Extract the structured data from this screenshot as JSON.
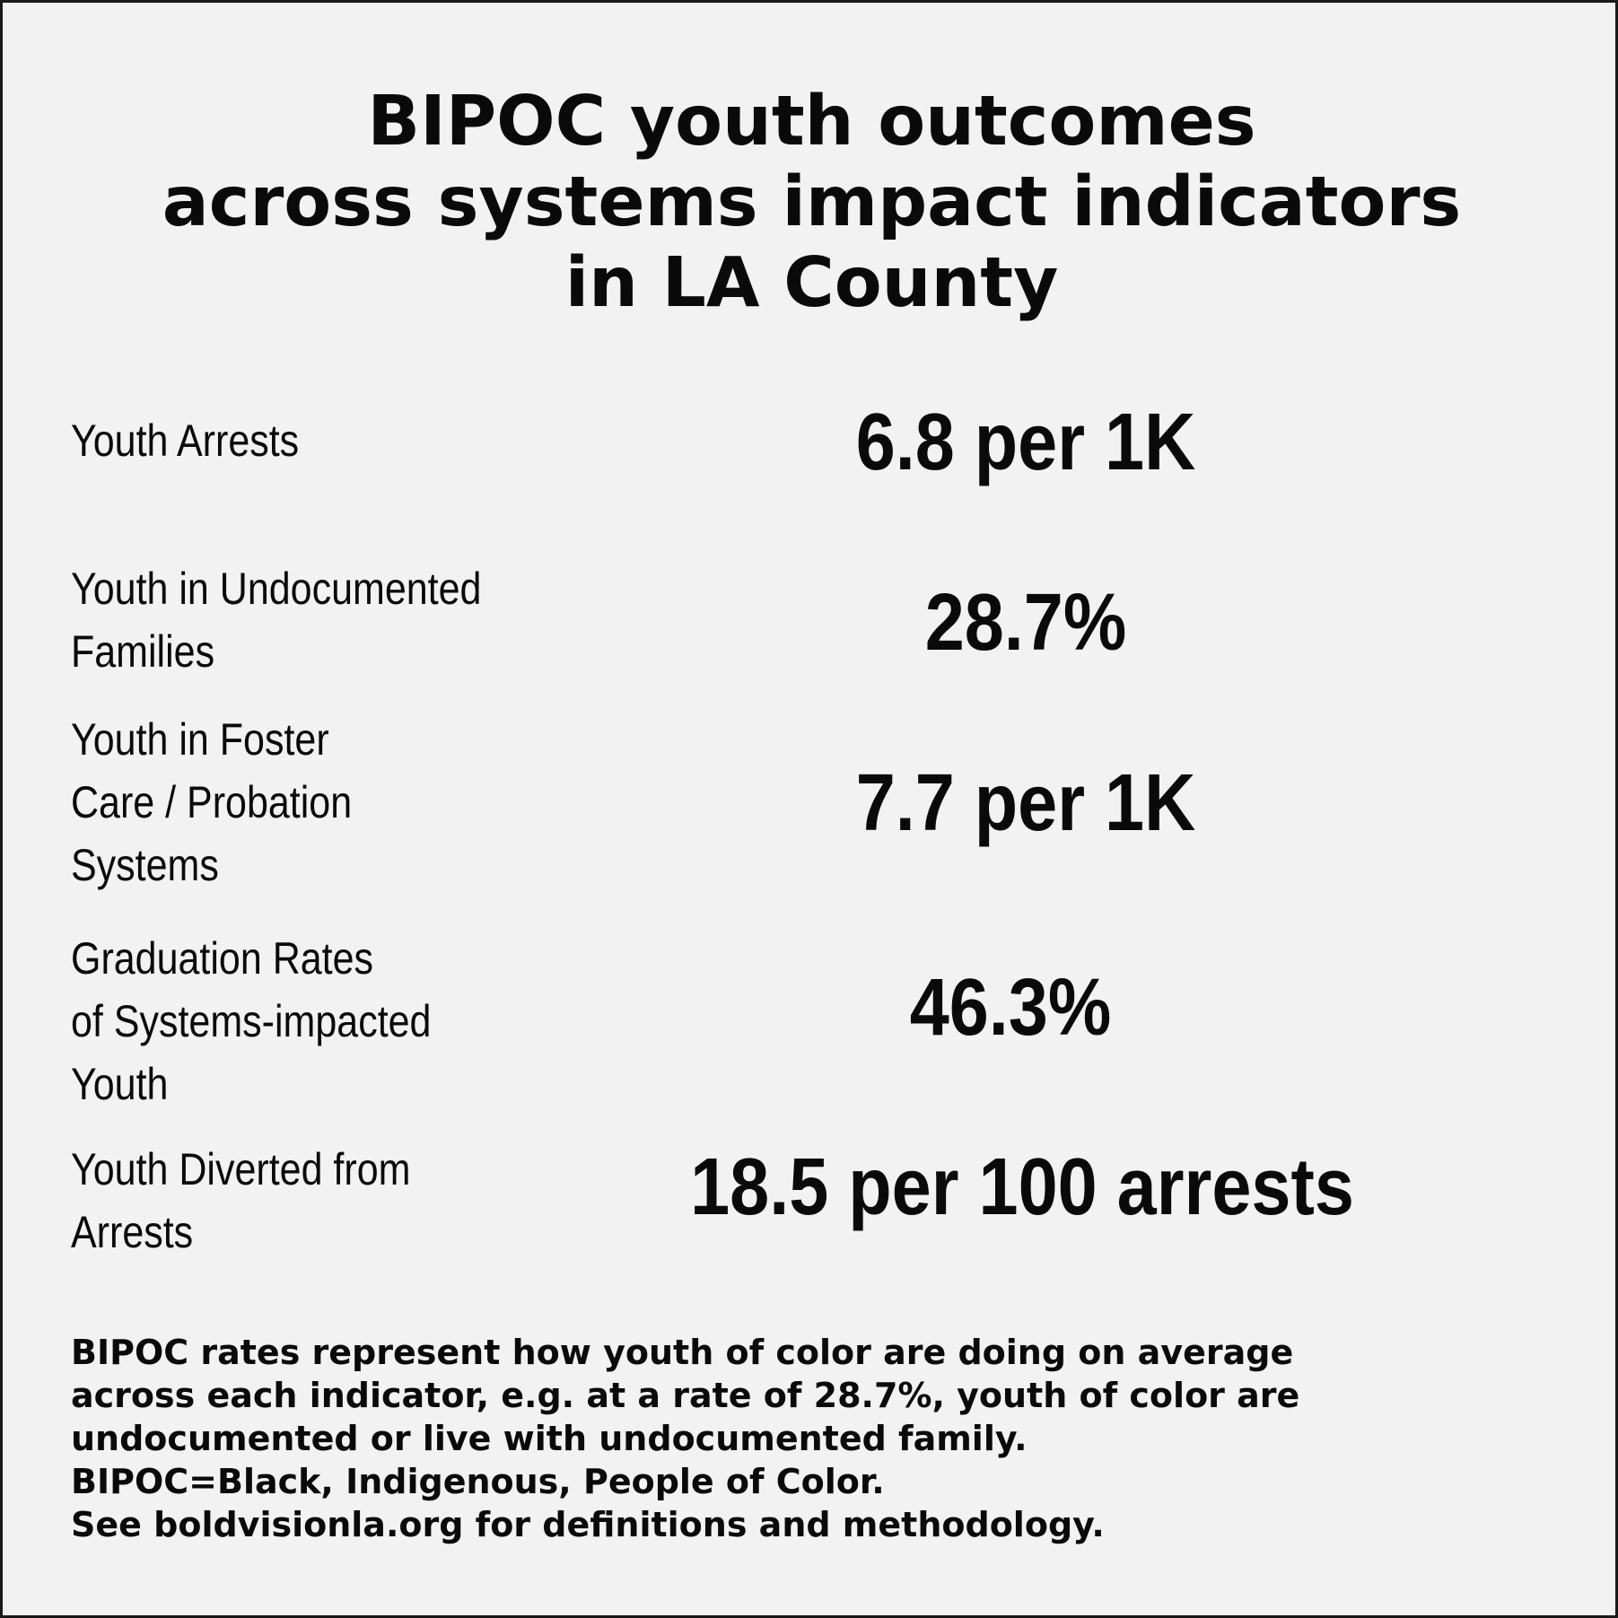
{
  "title": {
    "line1": "BIPOC youth outcomes",
    "line2": "across systems impact indicators",
    "line3": "in LA County"
  },
  "indicators": [
    {
      "label_lines": [
        "Youth Arrests"
      ],
      "value": "6.8 per 1K"
    },
    {
      "label_lines": [
        "Youth in Undocumented",
        "Families"
      ],
      "value": "28.7%"
    },
    {
      "label_lines": [
        "Youth in Foster",
        "Care / Probation",
        "Systems"
      ],
      "value": "7.7 per 1K"
    },
    {
      "label_lines": [
        "Graduation Rates",
        "of Systems-impacted",
        "Youth"
      ],
      "value": "46.3%"
    },
    {
      "label_lines": [
        "Youth Diverted from",
        "Arrests"
      ],
      "value": "18.5 per 100 arrests"
    }
  ],
  "footnote": {
    "lines": [
      "BIPOC rates represent how youth of color are doing on average",
      "across each indicator, e.g. at a rate of 28.7%, youth of color are",
      "undocumented or live with undocumented family.",
      "BIPOC=Black, Indigenous, People of Color.",
      "See boldvisionla.org for definitions and methodology."
    ]
  }
}
